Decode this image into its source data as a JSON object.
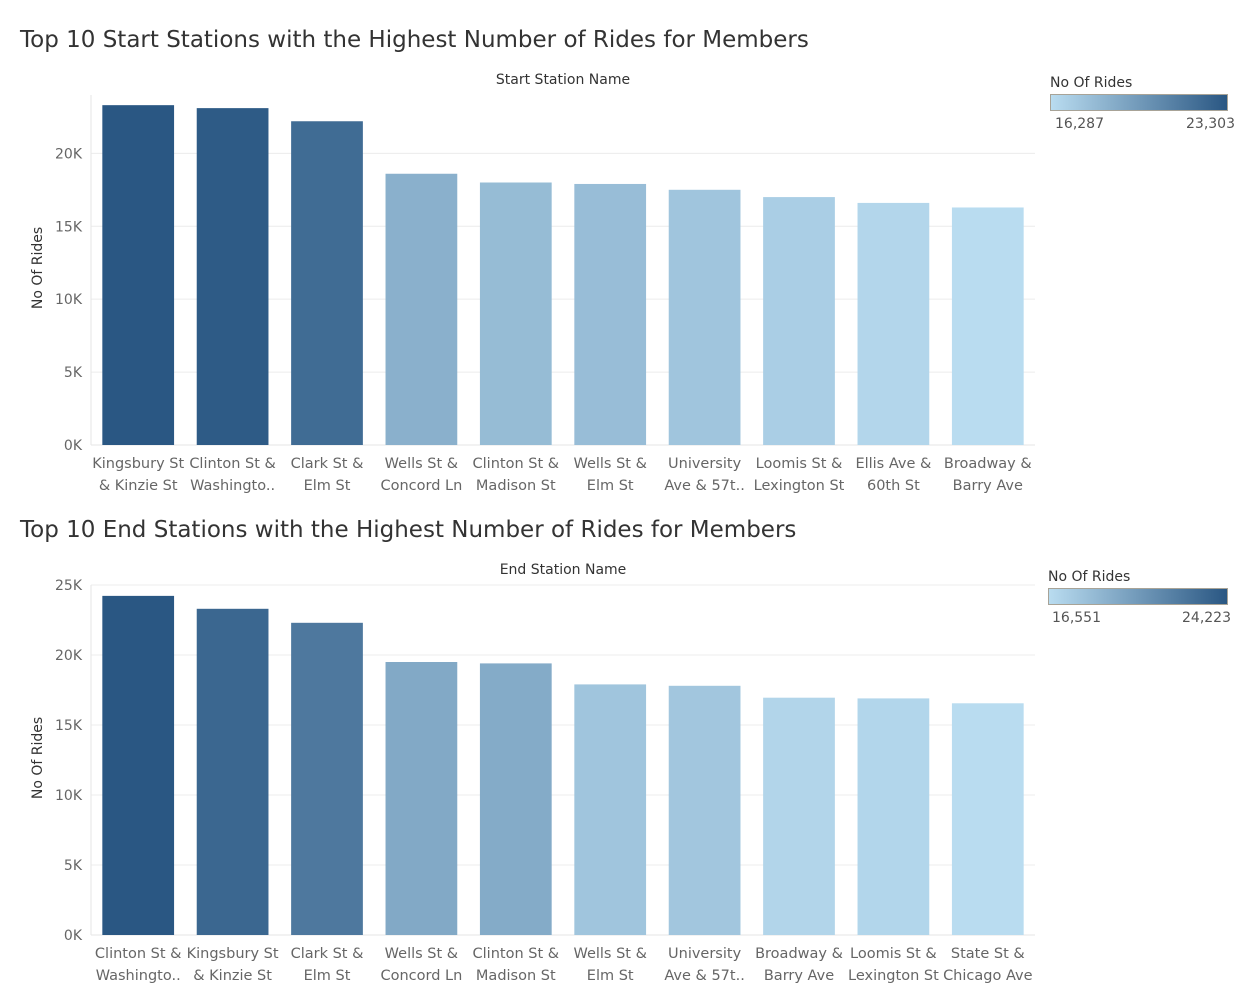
{
  "chart_data": [
    {
      "type": "bar",
      "title": "Top 10 Start Stations with the Highest Number of Rides for Members",
      "xlabel": "Start Station Name",
      "ylabel": "No Of Rides",
      "ylim": [
        0,
        24000
      ],
      "yticks": [
        0,
        5000,
        10000,
        15000,
        20000
      ],
      "ytick_labels": [
        "0K",
        "5K",
        "10K",
        "15K",
        "20K"
      ],
      "categories": [
        [
          "Kingsbury St",
          "& Kinzie St"
        ],
        [
          "Clinton St &",
          "Washingto.."
        ],
        [
          "Clark St &",
          "Elm St"
        ],
        [
          "Wells St &",
          "Concord Ln"
        ],
        [
          "Clinton St &",
          "Madison St"
        ],
        [
          "Wells St &",
          "Elm St"
        ],
        [
          "University",
          "Ave & 57t.."
        ],
        [
          "Loomis St &",
          "Lexington St"
        ],
        [
          "Ellis Ave &",
          "60th St"
        ],
        [
          "Broadway &",
          "Barry Ave"
        ]
      ],
      "values": [
        23303,
        23100,
        22200,
        18600,
        18000,
        17900,
        17500,
        17000,
        16600,
        16287
      ],
      "grid": true,
      "legend": {
        "title": "No Of Rides",
        "min_label": "16,287",
        "max_label": "23,303",
        "min": 16287,
        "max": 23303,
        "placement": "top-right"
      },
      "colors": {
        "low": "#b9dcf0",
        "high": "#2a5783"
      }
    },
    {
      "type": "bar",
      "title": "Top 10 End Stations with the Highest Number of Rides for Members",
      "xlabel": "End Station Name",
      "ylabel": "No Of Rides",
      "ylim": [
        0,
        25000
      ],
      "yticks": [
        0,
        5000,
        10000,
        15000,
        20000,
        25000
      ],
      "ytick_labels": [
        "0K",
        "5K",
        "10K",
        "15K",
        "20K",
        "25K"
      ],
      "categories": [
        [
          "Clinton St &",
          "Washingto.."
        ],
        [
          "Kingsbury St",
          "& Kinzie St"
        ],
        [
          "Clark St &",
          "Elm St"
        ],
        [
          "Wells St &",
          "Concord Ln"
        ],
        [
          "Clinton St &",
          "Madison St"
        ],
        [
          "Wells St &",
          "Elm St"
        ],
        [
          "University",
          "Ave & 57t.."
        ],
        [
          "Broadway &",
          "Barry Ave"
        ],
        [
          "Loomis St &",
          "Lexington St"
        ],
        [
          "State St &",
          "Chicago Ave"
        ]
      ],
      "values": [
        24223,
        23300,
        22300,
        19500,
        19400,
        17900,
        17800,
        16950,
        16900,
        16551
      ],
      "grid": true,
      "legend": {
        "title": "No Of Rides",
        "min_label": "16,551",
        "max_label": "24,223",
        "min": 16551,
        "max": 24223,
        "placement": "top-right"
      },
      "colors": {
        "low": "#b9dcf0",
        "high": "#2a5783"
      }
    }
  ]
}
